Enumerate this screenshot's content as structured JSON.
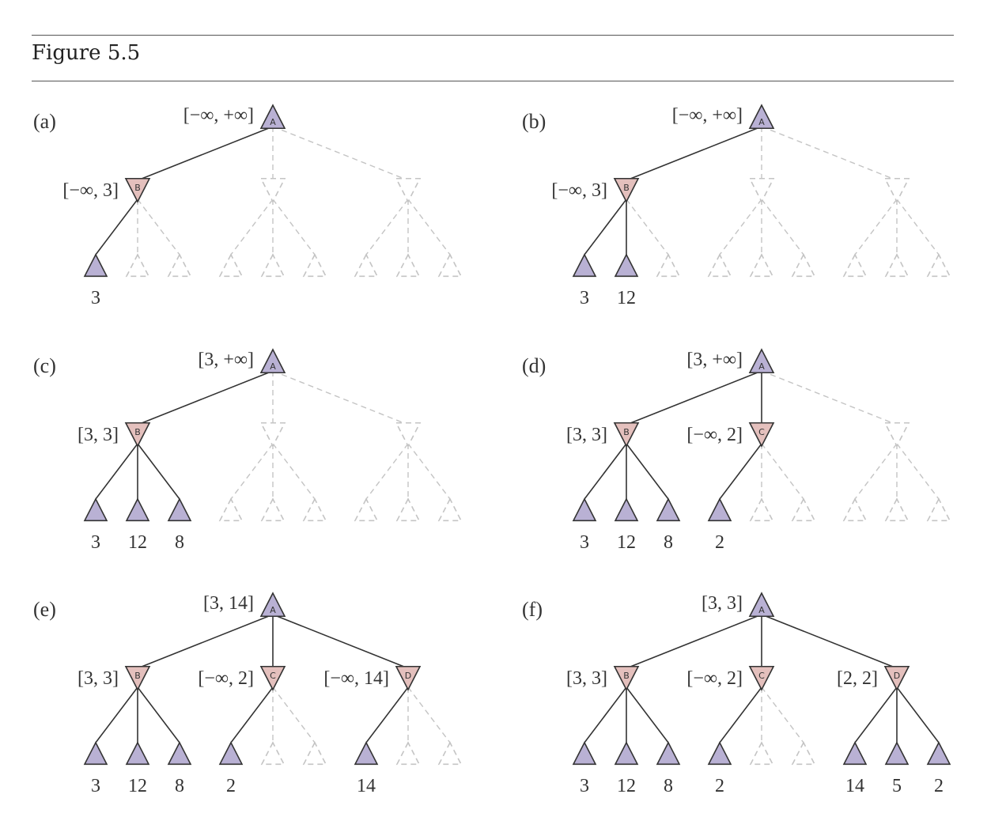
{
  "title": "Figure 5.5",
  "colors": {
    "max_fill": "#b9b1d4",
    "min_fill": "#e4c0bd",
    "edge": "#333333",
    "dashed": "#c4c4c4"
  },
  "panels": [
    {
      "label": "(a)",
      "root": {
        "letter": "A",
        "interval": "[−∞, +∞]"
      },
      "mins": [
        {
          "letter": "B",
          "interval": "[−∞, 3]",
          "active": true,
          "leaves": [
            "3",
            null,
            null
          ]
        },
        {
          "letter": "",
          "interval": "",
          "active": false,
          "leaves": [
            null,
            null,
            null
          ]
        },
        {
          "letter": "",
          "interval": "",
          "active": false,
          "leaves": [
            null,
            null,
            null
          ]
        }
      ]
    },
    {
      "label": "(b)",
      "root": {
        "letter": "A",
        "interval": "[−∞, +∞]"
      },
      "mins": [
        {
          "letter": "B",
          "interval": "[−∞, 3]",
          "active": true,
          "leaves": [
            "3",
            "12",
            null
          ]
        },
        {
          "letter": "",
          "interval": "",
          "active": false,
          "leaves": [
            null,
            null,
            null
          ]
        },
        {
          "letter": "",
          "interval": "",
          "active": false,
          "leaves": [
            null,
            null,
            null
          ]
        }
      ]
    },
    {
      "label": "(c)",
      "root": {
        "letter": "A",
        "interval": "[3, +∞]"
      },
      "mins": [
        {
          "letter": "B",
          "interval": "[3, 3]",
          "active": true,
          "leaves": [
            "3",
            "12",
            "8"
          ]
        },
        {
          "letter": "",
          "interval": "",
          "active": false,
          "leaves": [
            null,
            null,
            null
          ]
        },
        {
          "letter": "",
          "interval": "",
          "active": false,
          "leaves": [
            null,
            null,
            null
          ]
        }
      ]
    },
    {
      "label": "(d)",
      "root": {
        "letter": "A",
        "interval": "[3, +∞]"
      },
      "mins": [
        {
          "letter": "B",
          "interval": "[3, 3]",
          "active": true,
          "leaves": [
            "3",
            "12",
            "8"
          ]
        },
        {
          "letter": "C",
          "interval": "[−∞, 2]",
          "active": true,
          "leaves": [
            "2",
            null,
            null
          ]
        },
        {
          "letter": "",
          "interval": "",
          "active": false,
          "leaves": [
            null,
            null,
            null
          ]
        }
      ]
    },
    {
      "label": "(e)",
      "root": {
        "letter": "A",
        "interval": "[3, 14]"
      },
      "mins": [
        {
          "letter": "B",
          "interval": "[3, 3]",
          "active": true,
          "leaves": [
            "3",
            "12",
            "8"
          ]
        },
        {
          "letter": "C",
          "interval": "[−∞, 2]",
          "active": true,
          "leaves": [
            "2",
            null,
            null
          ]
        },
        {
          "letter": "D",
          "interval": "[−∞, 14]",
          "active": true,
          "leaves": [
            "14",
            null,
            null
          ]
        }
      ]
    },
    {
      "label": "(f)",
      "root": {
        "letter": "A",
        "interval": "[3, 3]"
      },
      "mins": [
        {
          "letter": "B",
          "interval": "[3, 3]",
          "active": true,
          "leaves": [
            "3",
            "12",
            "8"
          ]
        },
        {
          "letter": "C",
          "interval": "[−∞, 2]",
          "active": true,
          "leaves": [
            "2",
            null,
            null
          ]
        },
        {
          "letter": "D",
          "interval": "[2, 2]",
          "active": true,
          "leaves": [
            "14",
            "5",
            "2"
          ]
        }
      ]
    }
  ]
}
